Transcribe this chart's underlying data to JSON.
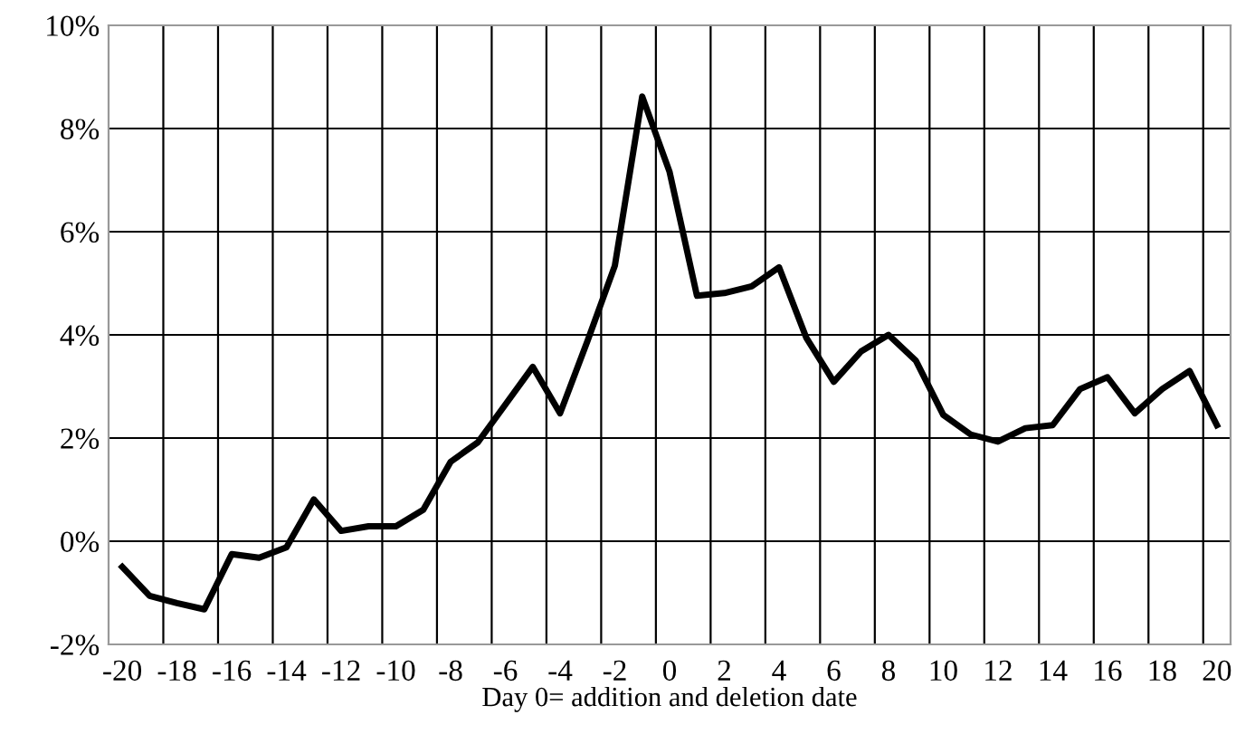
{
  "chart_data": {
    "type": "line",
    "xlabel": "Day 0= addition and deletion date",
    "categories": [
      "-20",
      null,
      "-18",
      null,
      "-16",
      null,
      "-14",
      null,
      "-12",
      null,
      "-10",
      null,
      "-8",
      null,
      "-6",
      null,
      "-4",
      null,
      "-2",
      null,
      "0",
      null,
      "2",
      null,
      "4",
      null,
      "6",
      null,
      "8",
      null,
      "10",
      null,
      "12",
      null,
      "14",
      null,
      "16",
      null,
      "18",
      null,
      "20"
    ],
    "series": [
      {
        "color": "#000000",
        "values": [
          -0.5,
          -1.06,
          -1.2,
          -1.32,
          -0.25,
          -0.32,
          -0.12,
          0.81,
          0.2,
          0.29,
          0.29,
          0.61,
          1.54,
          1.92,
          2.65,
          3.38,
          2.48,
          3.88,
          5.34,
          8.62,
          7.16,
          4.76,
          4.81,
          4.94,
          5.31,
          3.94,
          3.09,
          3.68,
          4.0,
          3.5,
          2.45,
          2.07,
          1.93,
          2.19,
          2.25,
          2.95,
          3.18,
          2.48,
          2.95,
          3.3,
          2.25
        ]
      }
    ],
    "ylim": [
      -2,
      10
    ],
    "yticks": [
      {
        "value": -2,
        "label": "-2%"
      },
      {
        "value": 0,
        "label": "0%"
      },
      {
        "value": 2,
        "label": "2%"
      },
      {
        "value": 4,
        "label": "4%"
      },
      {
        "value": 6,
        "label": "6%"
      },
      {
        "value": 8,
        "label": "8%"
      },
      {
        "value": 10,
        "label": "10%"
      }
    ],
    "grid": true,
    "legend": false,
    "marker": "none",
    "line_style": "solid"
  }
}
